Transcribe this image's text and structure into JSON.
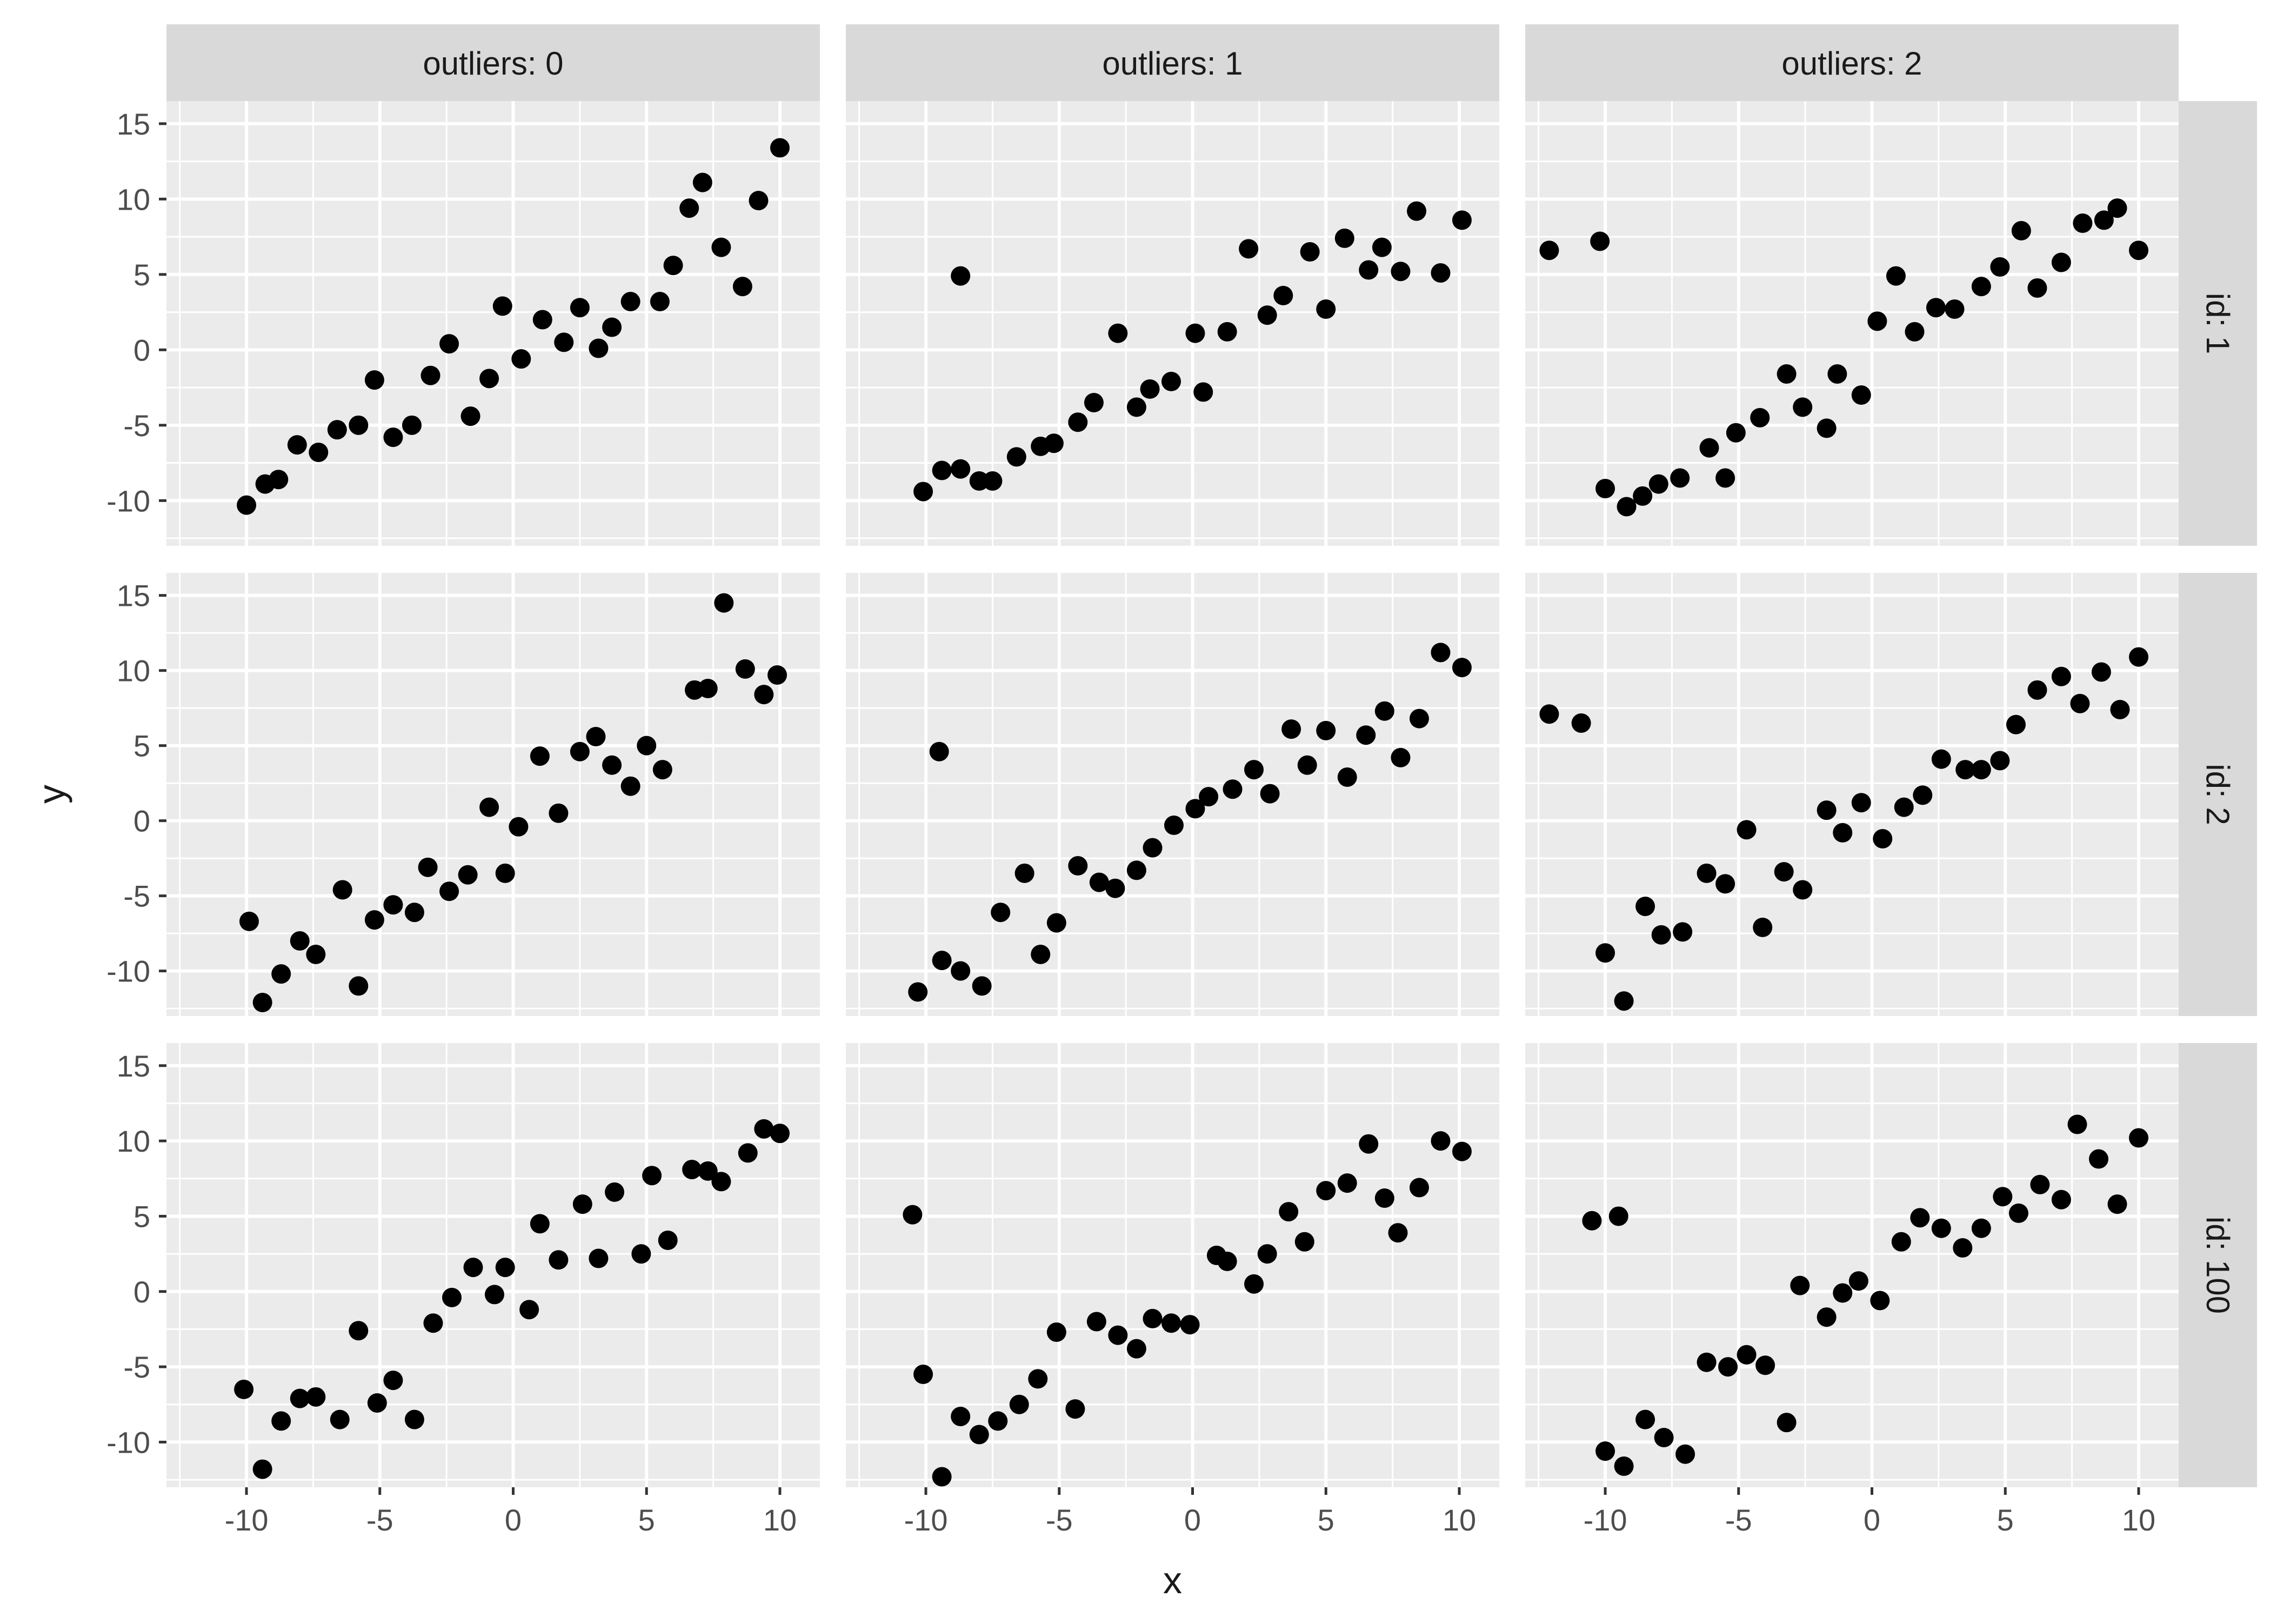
{
  "chart_data": {
    "type": "scatter",
    "xlabel": "x",
    "ylabel": "y",
    "xlim": [
      -13,
      11.5
    ],
    "ylim": [
      -13,
      16.5
    ],
    "x_ticks": [
      -10,
      -5,
      0,
      5,
      10
    ],
    "y_ticks": [
      -10,
      -5,
      0,
      5,
      10,
      15
    ],
    "x_tick_labels": [
      "-10",
      "-5",
      "0",
      "5",
      "10"
    ],
    "y_tick_labels": [
      "-10",
      "-5",
      "0",
      "5",
      "10",
      "15"
    ],
    "grid": true,
    "facet_cols": [
      "outliers: 0",
      "outliers: 1",
      "outliers: 2"
    ],
    "facet_rows": [
      "id: 1",
      "id: 2",
      "id: 100"
    ],
    "colors": {
      "panel_bg": "#ebebeb",
      "grid": "#ffffff",
      "strip_bg": "#d9d9d9",
      "point": "#000000",
      "text": "#4d4d4d",
      "title": "#1a1a1a"
    },
    "panels": [
      {
        "row": 0,
        "col": 0,
        "points": [
          [
            -10,
            -10.3
          ],
          [
            -9.3,
            -8.9
          ],
          [
            -8.8,
            -8.6
          ],
          [
            -8.1,
            -6.3
          ],
          [
            -7.3,
            -6.8
          ],
          [
            -6.6,
            -5.3
          ],
          [
            -5.8,
            -5
          ],
          [
            -5.2,
            -2
          ],
          [
            -4.5,
            -5.8
          ],
          [
            -3.8,
            -5
          ],
          [
            -3.1,
            -1.7
          ],
          [
            -2.4,
            0.4
          ],
          [
            -1.6,
            -4.4
          ],
          [
            -0.9,
            -1.9
          ],
          [
            -0.4,
            2.9
          ],
          [
            0.3,
            -0.6
          ],
          [
            1.1,
            2
          ],
          [
            1.9,
            0.5
          ],
          [
            2.5,
            2.8
          ],
          [
            3.2,
            0.1
          ],
          [
            3.7,
            1.5
          ],
          [
            4.4,
            3.2
          ],
          [
            5.5,
            3.2
          ],
          [
            6,
            5.6
          ],
          [
            6.6,
            9.4
          ],
          [
            7.1,
            11.1
          ],
          [
            7.8,
            6.8
          ],
          [
            8.6,
            4.2
          ],
          [
            9.2,
            9.9
          ],
          [
            10,
            13.4
          ]
        ]
      },
      {
        "row": 0,
        "col": 1,
        "points": [
          [
            -10.1,
            -9.4
          ],
          [
            -9.4,
            -8
          ],
          [
            -8.7,
            -7.9
          ],
          [
            -8.7,
            4.9
          ],
          [
            -8,
            -8.7
          ],
          [
            -7.5,
            -8.7
          ],
          [
            -6.6,
            -7.1
          ],
          [
            -5.7,
            -6.4
          ],
          [
            -5.2,
            -6.2
          ],
          [
            -4.3,
            -4.8
          ],
          [
            -3.7,
            -3.5
          ],
          [
            -2.8,
            1.1
          ],
          [
            -2.1,
            -3.8
          ],
          [
            -1.6,
            -2.6
          ],
          [
            -0.8,
            -2.1
          ],
          [
            0.1,
            1.1
          ],
          [
            0.4,
            -2.8
          ],
          [
            1.3,
            1.2
          ],
          [
            2.1,
            6.7
          ],
          [
            2.8,
            2.3
          ],
          [
            3.4,
            3.6
          ],
          [
            4.4,
            6.5
          ],
          [
            5,
            2.7
          ],
          [
            5.7,
            7.4
          ],
          [
            6.6,
            5.3
          ],
          [
            7.1,
            6.8
          ],
          [
            7.8,
            5.2
          ],
          [
            8.4,
            9.2
          ],
          [
            9.3,
            5.1
          ],
          [
            10.1,
            8.6
          ]
        ]
      },
      {
        "row": 0,
        "col": 2,
        "points": [
          [
            -12.1,
            6.6
          ],
          [
            -10.2,
            7.2
          ],
          [
            -10,
            -9.2
          ],
          [
            -9.2,
            -10.4
          ],
          [
            -8.6,
            -9.7
          ],
          [
            -8,
            -8.9
          ],
          [
            -7.2,
            -8.5
          ],
          [
            -6.1,
            -6.5
          ],
          [
            -5.5,
            -8.5
          ],
          [
            -5.1,
            -5.5
          ],
          [
            -4.2,
            -4.5
          ],
          [
            -3.2,
            -1.6
          ],
          [
            -2.6,
            -3.8
          ],
          [
            -1.7,
            -5.2
          ],
          [
            -1.3,
            -1.6
          ],
          [
            -0.4,
            -3
          ],
          [
            0.2,
            1.9
          ],
          [
            0.9,
            4.9
          ],
          [
            1.6,
            1.2
          ],
          [
            2.4,
            2.8
          ],
          [
            3.1,
            2.7
          ],
          [
            4.1,
            4.2
          ],
          [
            4.8,
            5.5
          ],
          [
            5.6,
            7.9
          ],
          [
            6.2,
            4.1
          ],
          [
            7.1,
            5.8
          ],
          [
            7.9,
            8.4
          ],
          [
            8.7,
            8.6
          ],
          [
            9.2,
            9.4
          ],
          [
            10,
            6.6
          ]
        ]
      },
      {
        "row": 1,
        "col": 0,
        "points": [
          [
            -9.9,
            -6.7
          ],
          [
            -9.4,
            -12.1
          ],
          [
            -8.7,
            -10.2
          ],
          [
            -8,
            -8
          ],
          [
            -7.4,
            -8.9
          ],
          [
            -6.4,
            -4.6
          ],
          [
            -5.8,
            -11
          ],
          [
            -5.2,
            -6.6
          ],
          [
            -4.5,
            -5.6
          ],
          [
            -3.7,
            -6.1
          ],
          [
            -3.2,
            -3.1
          ],
          [
            -2.4,
            -4.7
          ],
          [
            -1.7,
            -3.6
          ],
          [
            -0.9,
            0.9
          ],
          [
            -0.3,
            -3.5
          ],
          [
            0.2,
            -0.4
          ],
          [
            1,
            4.3
          ],
          [
            1.7,
            0.5
          ],
          [
            2.5,
            4.6
          ],
          [
            3.1,
            5.6
          ],
          [
            3.7,
            3.7
          ],
          [
            4.4,
            2.3
          ],
          [
            5,
            5
          ],
          [
            5.6,
            3.4
          ],
          [
            6.8,
            8.7
          ],
          [
            7.3,
            8.8
          ],
          [
            7.9,
            14.5
          ],
          [
            8.7,
            10.1
          ],
          [
            9.4,
            8.4
          ],
          [
            9.9,
            9.7
          ]
        ]
      },
      {
        "row": 1,
        "col": 1,
        "points": [
          [
            -10.3,
            -11.4
          ],
          [
            -9.5,
            4.6
          ],
          [
            -9.4,
            -9.3
          ],
          [
            -8.7,
            -10
          ],
          [
            -7.9,
            -11
          ],
          [
            -7.2,
            -6.1
          ],
          [
            -6.3,
            -3.5
          ],
          [
            -5.7,
            -8.9
          ],
          [
            -5.1,
            -6.8
          ],
          [
            -4.3,
            -3
          ],
          [
            -3.5,
            -4.1
          ],
          [
            -2.9,
            -4.5
          ],
          [
            -2.1,
            -3.3
          ],
          [
            -1.5,
            -1.8
          ],
          [
            -0.7,
            -0.3
          ],
          [
            0.1,
            0.8
          ],
          [
            0.6,
            1.6
          ],
          [
            1.5,
            2.1
          ],
          [
            2.3,
            3.4
          ],
          [
            2.9,
            1.8
          ],
          [
            3.7,
            6.1
          ],
          [
            4.3,
            3.7
          ],
          [
            5,
            6
          ],
          [
            5.8,
            2.9
          ],
          [
            6.5,
            5.7
          ],
          [
            7.2,
            7.3
          ],
          [
            7.8,
            4.2
          ],
          [
            8.5,
            6.8
          ],
          [
            9.3,
            11.2
          ],
          [
            10.1,
            10.2
          ]
        ]
      },
      {
        "row": 1,
        "col": 2,
        "points": [
          [
            -12.1,
            7.1
          ],
          [
            -10.9,
            6.5
          ],
          [
            -10,
            -8.8
          ],
          [
            -9.3,
            -12
          ],
          [
            -8.5,
            -5.7
          ],
          [
            -7.9,
            -7.6
          ],
          [
            -7.1,
            -7.4
          ],
          [
            -6.2,
            -3.5
          ],
          [
            -5.5,
            -4.2
          ],
          [
            -4.7,
            -0.6
          ],
          [
            -4.1,
            -7.1
          ],
          [
            -3.3,
            -3.4
          ],
          [
            -2.6,
            -4.6
          ],
          [
            -1.7,
            0.7
          ],
          [
            -1.1,
            -0.8
          ],
          [
            -0.4,
            1.2
          ],
          [
            0.4,
            -1.2
          ],
          [
            1.2,
            0.9
          ],
          [
            1.9,
            1.7
          ],
          [
            2.6,
            4.1
          ],
          [
            3.5,
            3.4
          ],
          [
            4.1,
            3.4
          ],
          [
            4.8,
            4
          ],
          [
            5.4,
            6.4
          ],
          [
            6.2,
            8.7
          ],
          [
            7.1,
            9.6
          ],
          [
            7.8,
            7.8
          ],
          [
            8.6,
            9.9
          ],
          [
            9.3,
            7.4
          ],
          [
            10,
            10.9
          ]
        ]
      },
      {
        "row": 2,
        "col": 0,
        "points": [
          [
            -10.1,
            -6.5
          ],
          [
            -9.4,
            -11.8
          ],
          [
            -8.7,
            -8.6
          ],
          [
            -8,
            -7.1
          ],
          [
            -7.4,
            -7
          ],
          [
            -6.5,
            -8.5
          ],
          [
            -5.8,
            -2.6
          ],
          [
            -5.1,
            -7.4
          ],
          [
            -4.5,
            -5.9
          ],
          [
            -3.7,
            -8.5
          ],
          [
            -3,
            -2.1
          ],
          [
            -2.3,
            -0.4
          ],
          [
            -1.5,
            1.6
          ],
          [
            -0.7,
            -0.2
          ],
          [
            -0.3,
            1.6
          ],
          [
            0.6,
            -1.2
          ],
          [
            1,
            4.5
          ],
          [
            1.7,
            2.1
          ],
          [
            2.6,
            5.8
          ],
          [
            3.2,
            2.2
          ],
          [
            3.8,
            6.6
          ],
          [
            4.8,
            2.5
          ],
          [
            5.2,
            7.7
          ],
          [
            5.8,
            3.4
          ],
          [
            6.7,
            8.1
          ],
          [
            7.3,
            8
          ],
          [
            7.8,
            7.3
          ],
          [
            8.8,
            9.2
          ],
          [
            9.4,
            10.8
          ],
          [
            10,
            10.5
          ]
        ]
      },
      {
        "row": 2,
        "col": 1,
        "points": [
          [
            -10.5,
            5.1
          ],
          [
            -10.1,
            -5.5
          ],
          [
            -9.4,
            -12.3
          ],
          [
            -8.7,
            -8.3
          ],
          [
            -8,
            -9.5
          ],
          [
            -7.3,
            -8.6
          ],
          [
            -6.5,
            -7.5
          ],
          [
            -5.8,
            -5.8
          ],
          [
            -5.1,
            -2.7
          ],
          [
            -4.4,
            -7.8
          ],
          [
            -3.6,
            -2
          ],
          [
            -2.8,
            -2.9
          ],
          [
            -2.1,
            -3.8
          ],
          [
            -1.5,
            -1.8
          ],
          [
            -0.8,
            -2.1
          ],
          [
            -0.1,
            -2.2
          ],
          [
            0.9,
            2.4
          ],
          [
            1.3,
            2
          ],
          [
            2.3,
            0.5
          ],
          [
            2.8,
            2.5
          ],
          [
            3.6,
            5.3
          ],
          [
            4.2,
            3.3
          ],
          [
            5,
            6.7
          ],
          [
            5.8,
            7.2
          ],
          [
            6.6,
            9.8
          ],
          [
            7.2,
            6.2
          ],
          [
            7.7,
            3.9
          ],
          [
            8.5,
            6.9
          ],
          [
            9.3,
            10
          ],
          [
            10.1,
            9.3
          ]
        ]
      },
      {
        "row": 2,
        "col": 2,
        "points": [
          [
            -10.5,
            4.7
          ],
          [
            -10,
            -10.6
          ],
          [
            -9.5,
            5
          ],
          [
            -9.3,
            -11.6
          ],
          [
            -8.5,
            -8.5
          ],
          [
            -7.8,
            -9.7
          ],
          [
            -7,
            -10.8
          ],
          [
            -6.2,
            -4.7
          ],
          [
            -5.4,
            -5
          ],
          [
            -4.7,
            -4.2
          ],
          [
            -4,
            -4.9
          ],
          [
            -3.2,
            -8.7
          ],
          [
            -2.7,
            0.4
          ],
          [
            -1.7,
            -1.7
          ],
          [
            -1.1,
            -0.1
          ],
          [
            -0.5,
            0.7
          ],
          [
            0.3,
            -0.6
          ],
          [
            1.1,
            3.3
          ],
          [
            1.8,
            4.9
          ],
          [
            2.6,
            4.2
          ],
          [
            3.4,
            2.9
          ],
          [
            4.1,
            4.2
          ],
          [
            4.9,
            6.3
          ],
          [
            5.5,
            5.2
          ],
          [
            6.3,
            7.1
          ],
          [
            7.1,
            6.1
          ],
          [
            7.7,
            11.1
          ],
          [
            8.5,
            8.8
          ],
          [
            9.2,
            5.8
          ],
          [
            10,
            10.2
          ]
        ]
      }
    ]
  }
}
